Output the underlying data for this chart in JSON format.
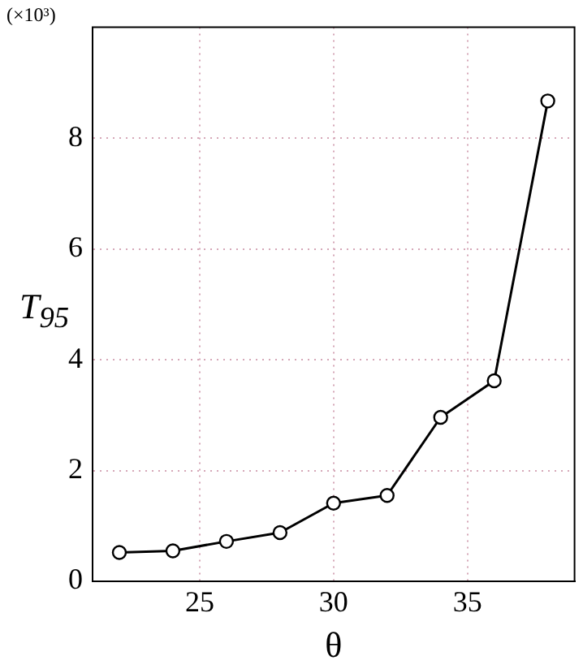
{
  "chart_data": {
    "type": "line",
    "xlabel": "θ",
    "ylabel": "T$_{95}$",
    "annotations": [
      "(×10³)"
    ],
    "x": [
      22,
      24,
      26,
      28,
      30,
      32,
      34,
      36,
      38
    ],
    "series": [
      {
        "color": "#000000",
        "values": [
          0.52,
          0.55,
          0.72,
          0.88,
          1.41,
          1.55,
          2.96,
          3.62,
          8.67
        ]
      }
    ],
    "xlim": [
      21,
      39
    ],
    "xticks": [
      25,
      30,
      35
    ],
    "ylim": [
      0,
      10
    ],
    "yticks": [
      0,
      2,
      4,
      6,
      8
    ],
    "grid": true,
    "marker": "circle",
    "line_style": "solid",
    "legend": false
  }
}
